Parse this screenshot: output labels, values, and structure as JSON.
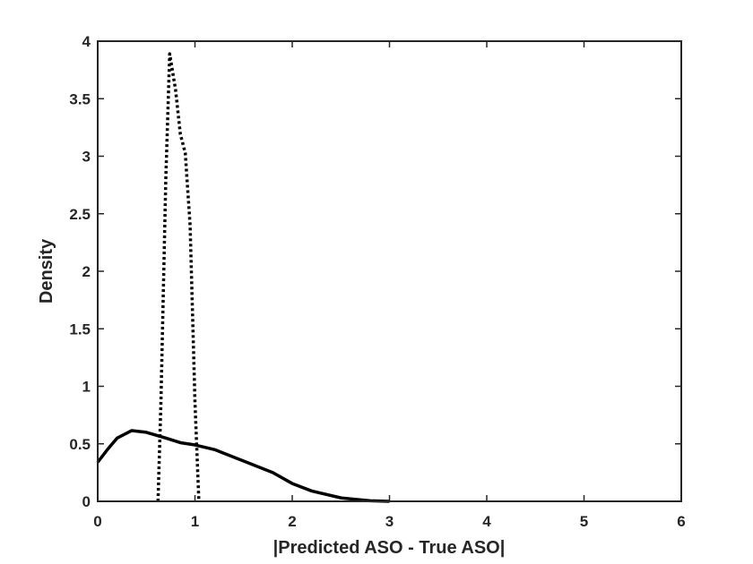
{
  "chart_data": {
    "type": "line",
    "xlabel": "|Predicted ASO - True ASO|",
    "ylabel": "Density",
    "xlim": [
      0,
      6
    ],
    "ylim": [
      0,
      4
    ],
    "xticks": [
      0,
      1,
      2,
      3,
      4,
      5,
      6
    ],
    "yticks": [
      0,
      0.5,
      1,
      1.5,
      2,
      2.5,
      3,
      3.5,
      4
    ],
    "box": true,
    "series": [
      {
        "color": "#000000",
        "line_style": "solid",
        "x": [
          0,
          0.1,
          0.2,
          0.35,
          0.5,
          0.7,
          0.85,
          1,
          1.2,
          1.5,
          1.8,
          2,
          2.2,
          2.5,
          2.8,
          3
        ],
        "values": [
          0.34,
          0.45,
          0.55,
          0.615,
          0.6,
          0.55,
          0.51,
          0.49,
          0.45,
          0.35,
          0.25,
          0.155,
          0.09,
          0.03,
          0.005,
          0
        ]
      },
      {
        "color": "#000000",
        "line_style": "dotted",
        "x": [
          0.62,
          0.65,
          0.7,
          0.74,
          0.8,
          0.85,
          0.9,
          0.95,
          1.0,
          1.04
        ],
        "values": [
          0,
          0.86,
          2.8,
          3.89,
          3.58,
          3.19,
          3.03,
          2.4,
          0.86,
          0
        ]
      }
    ]
  }
}
